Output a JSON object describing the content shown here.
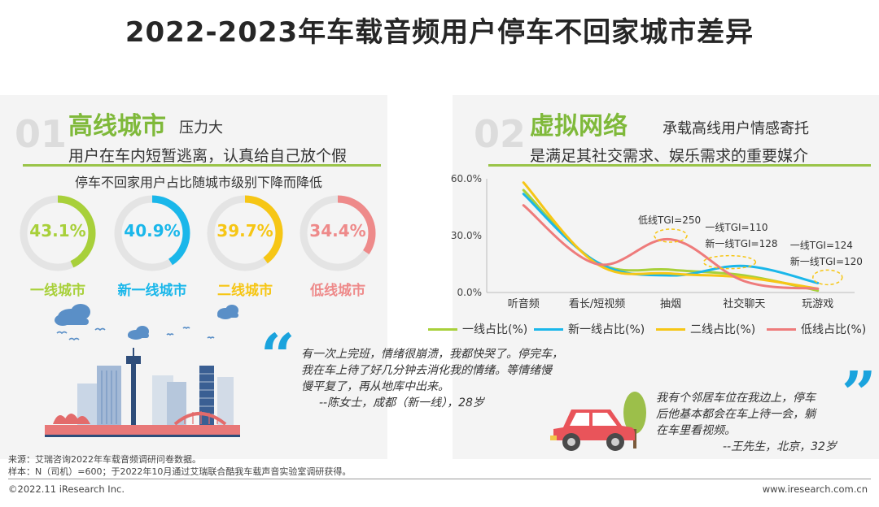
{
  "title": "2022-2023年车载音频用户停车不回家城市差异",
  "left": {
    "num": "01",
    "headline_big": "高线城市",
    "headline_small": "压力大",
    "subline": "用户在车内短暂逃离，认真给自己放个假",
    "caption": "停车不回家用户占比随城市级别下降而降低",
    "rings": [
      {
        "label": "一线城市",
        "value_text": "43.1%",
        "value": 43.1,
        "color": "#a8d03a"
      },
      {
        "label": "新一线城市",
        "value_text": "40.9%",
        "value": 40.9,
        "color": "#1ab7ea"
      },
      {
        "label": "二线城市",
        "value_text": "39.7%",
        "value": 39.7,
        "color": "#f6c615"
      },
      {
        "label": "低线城市",
        "value_text": "34.4%",
        "value": 34.4,
        "color": "#ee8a8a"
      }
    ],
    "quote": {
      "text": [
        "有一次上完班，情绪很崩溃，我都快哭了。停完车，",
        "我在车上待了好几分钟去消化我的情绪。等情绪慢",
        "慢平复了，再从地库中出来。"
      ],
      "author": "--陈女士，成都（新一线），28岁"
    }
  },
  "right": {
    "num": "02",
    "headline_big": "虚拟网络",
    "headline_small": "承载高线用户情感寄托",
    "subline": "是满足其社交需求、娱乐需求的重要媒介",
    "quote": {
      "text": [
        "我有个邻居车位在我边上，停车",
        "后他基本都会在车上待一会，躺",
        "在车里看视频。"
      ],
      "author": "--王先生，北京，32岁"
    }
  },
  "chart_data": {
    "type": "line",
    "categories": [
      "听音频",
      "看长/短视频",
      "抽烟",
      "社交聊天",
      "玩游戏"
    ],
    "ylim": [
      0,
      60
    ],
    "yticks": [
      "60.0%",
      "30.0%",
      "0.0%"
    ],
    "series": [
      {
        "name": "一线占比(%)",
        "color": "#a8d03a",
        "values": [
          54,
          16,
          12,
          9,
          1
        ]
      },
      {
        "name": "新一线占比(%)",
        "color": "#1ab7ea",
        "values": [
          52,
          16,
          9,
          14,
          5
        ]
      },
      {
        "name": "二线占比(%)",
        "color": "#f6c615",
        "values": [
          58,
          15,
          10,
          8,
          2
        ]
      },
      {
        "name": "低线占比(%)",
        "color": "#ee7b7b",
        "values": [
          46,
          15,
          28,
          6,
          2
        ]
      }
    ],
    "annotations": [
      "低线TGI=250",
      "一线TGI=110",
      "新一线TGI=128",
      "一线TGI=124",
      "新一线TGI=120"
    ]
  },
  "footnotes": [
    "来源：艾瑞咨询2022年车载音频调研问卷数据。",
    "样本：N（司机）=600；于2022年10月通过艾瑞联合酷我车载声音实验室调研获得。"
  ],
  "footer_left": "©2022.11 iResearch Inc.",
  "footer_right": "www.iresearch.com.cn"
}
